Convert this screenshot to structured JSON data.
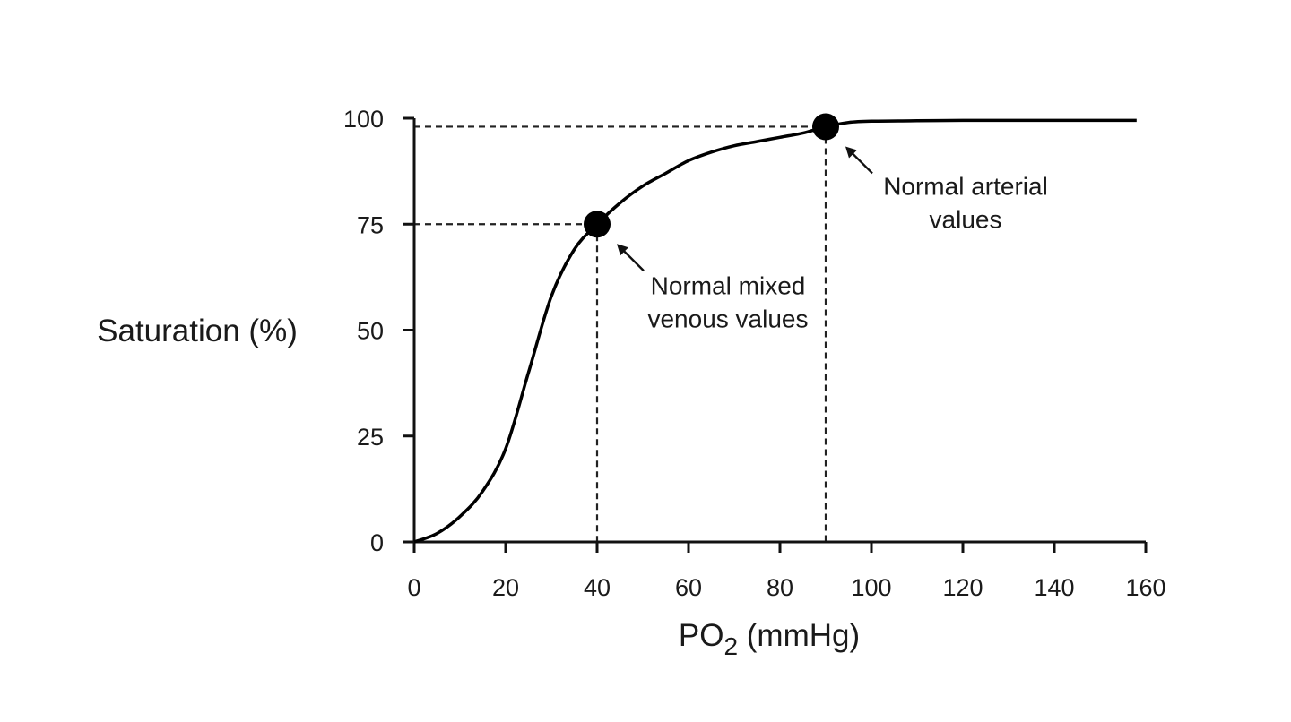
{
  "chart_data": {
    "type": "line",
    "title": "",
    "xlabel_main": "PO",
    "xlabel_sub": "2",
    "xlabel_unit": " (mmHg)",
    "ylabel": "Saturation (%)",
    "xlim": [
      0,
      160
    ],
    "ylim": [
      0,
      100
    ],
    "x_ticks": [
      0,
      20,
      40,
      60,
      80,
      100,
      120,
      140,
      160
    ],
    "y_ticks": [
      0,
      25,
      50,
      75,
      100
    ],
    "x_tick_labels": [
      "0",
      "20",
      "40",
      "60",
      "80",
      "100",
      "120",
      "140",
      "160"
    ],
    "y_tick_labels": [
      "0",
      "25",
      "50",
      "75",
      "100"
    ],
    "grid": false,
    "series": [
      {
        "x": [
          0,
          5,
          10,
          15,
          20,
          25,
          30,
          35,
          40,
          45,
          50,
          55,
          60,
          65,
          70,
          75,
          80,
          85,
          90,
          95,
          100,
          110,
          120,
          130,
          140,
          150,
          158
        ],
        "values": [
          0,
          2,
          6,
          12,
          22,
          40,
          58,
          69,
          75,
          80,
          84,
          87,
          90,
          92,
          93.5,
          94.5,
          95.5,
          96.5,
          98,
          99,
          99.3,
          99.4,
          99.5,
          99.5,
          99.5,
          99.5,
          99.5
        ]
      }
    ],
    "points": [
      {
        "x": 40,
        "y": 75,
        "label_lines": [
          "Normal mixed",
          "venous values"
        ]
      },
      {
        "x": 90,
        "y": 98,
        "label_lines": [
          "Normal arterial",
          "values"
        ]
      }
    ]
  }
}
